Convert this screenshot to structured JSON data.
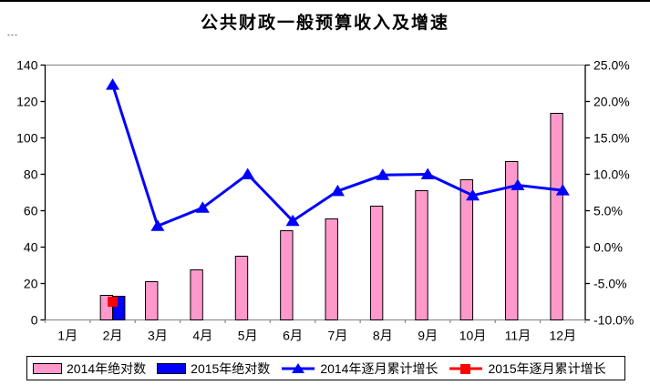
{
  "title": "公共财政一般预算收入及增速",
  "unit_note": "---",
  "chart_data": {
    "type": "combo-bar-line",
    "title": "公共财政一般预算收入及增速",
    "categories": [
      "1月",
      "2月",
      "3月",
      "4月",
      "5月",
      "6月",
      "7月",
      "8月",
      "9月",
      "10月",
      "11月",
      "12月"
    ],
    "left_axis": {
      "min": 0,
      "max": 140,
      "step": 20,
      "labels": [
        "0",
        "20",
        "40",
        "60",
        "80",
        "100",
        "120",
        "140"
      ]
    },
    "right_axis": {
      "min": -10,
      "max": 25,
      "step": 5,
      "labels": [
        "-10.0%",
        "-5.0%",
        "0.0%",
        "5.0%",
        "10.0%",
        "15.0%",
        "20.0%",
        "25.0%"
      ]
    },
    "grid": false,
    "legend_position": "bottom",
    "series": [
      {
        "name": "2014年绝对数",
        "type": "bar",
        "axis": "left",
        "color": "#FF99CC",
        "values": [
          null,
          13.5,
          21,
          27.5,
          35,
          49,
          55.5,
          62.5,
          71,
          77,
          87,
          113.5
        ]
      },
      {
        "name": "2015年绝对数",
        "type": "bar",
        "axis": "left",
        "color": "#0000FF",
        "values": [
          null,
          13,
          null,
          null,
          null,
          null,
          null,
          null,
          null,
          null,
          null,
          null
        ]
      },
      {
        "name": "2014年逐月累计增长",
        "type": "line",
        "axis": "right",
        "color": "#0000FF",
        "marker": "triangle",
        "values": [
          null,
          22.3,
          2.9,
          5.4,
          10.0,
          3.6,
          7.7,
          9.9,
          10.0,
          7.1,
          8.5,
          7.8
        ]
      },
      {
        "name": "2015年逐月累计增长",
        "type": "line",
        "axis": "right",
        "color": "#FF0000",
        "marker": "square",
        "values": [
          null,
          -7.5,
          null,
          null,
          null,
          null,
          null,
          null,
          null,
          null,
          null,
          null
        ]
      }
    ]
  },
  "colors": {
    "axis_line": "#000000",
    "plot_border": "#909090",
    "bar_stroke": "#000000",
    "text": "#000000"
  }
}
